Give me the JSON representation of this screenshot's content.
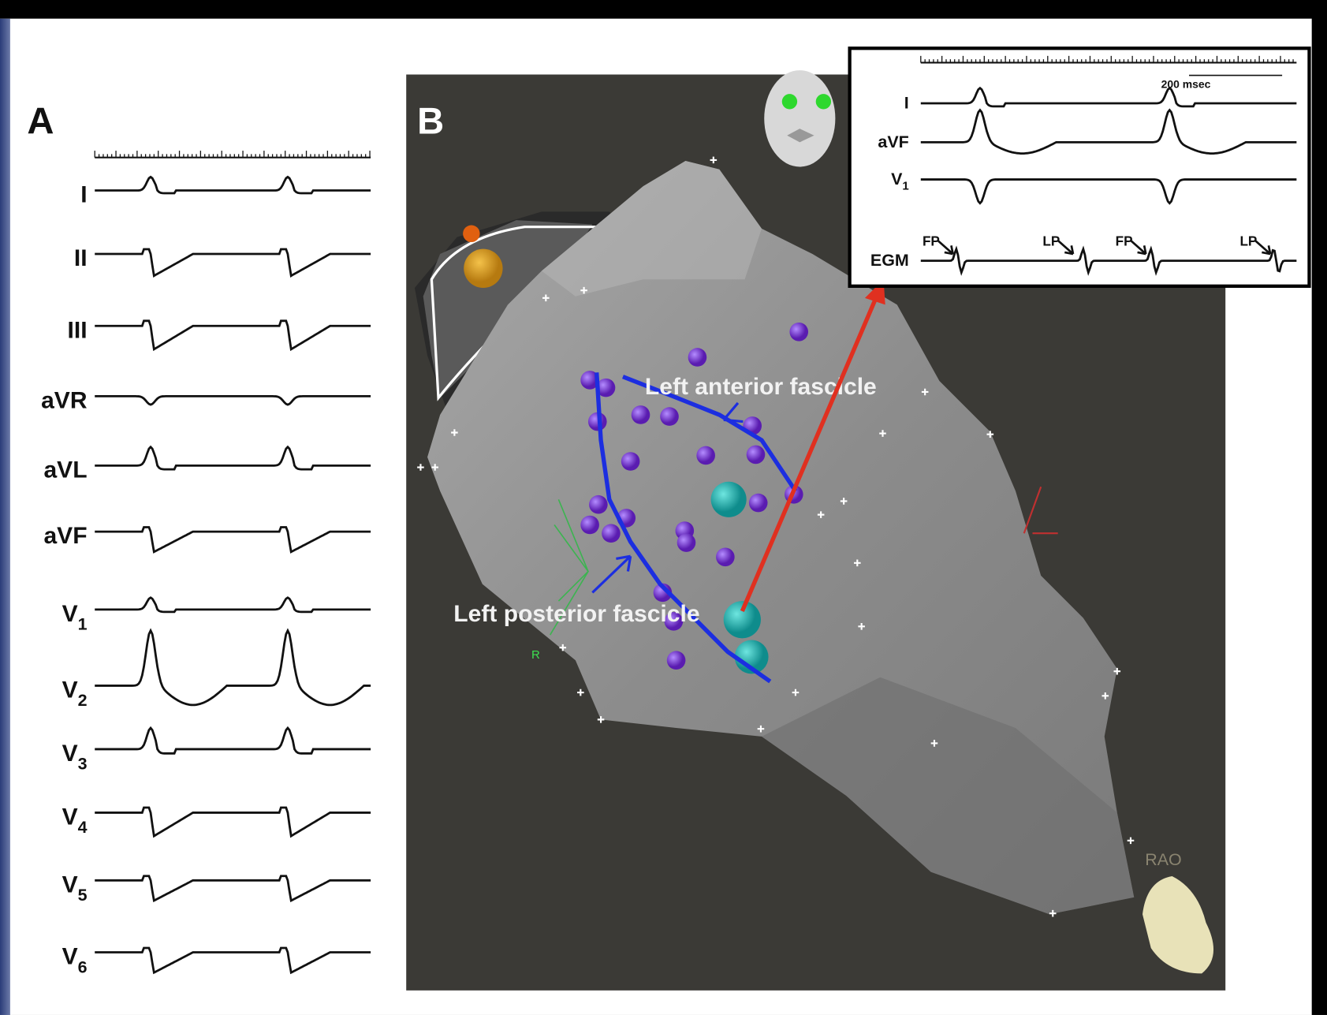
{
  "panel_a": {
    "label": "A",
    "leads": [
      {
        "name": "I"
      },
      {
        "name": "II"
      },
      {
        "name": "III"
      },
      {
        "name": "aVR"
      },
      {
        "name": "aVL"
      },
      {
        "name": "aVF"
      },
      {
        "name": "V",
        "sub": "1"
      },
      {
        "name": "V",
        "sub": "2"
      },
      {
        "name": "V",
        "sub": "3"
      },
      {
        "name": "V",
        "sub": "4"
      },
      {
        "name": "V",
        "sub": "5"
      },
      {
        "name": "V",
        "sub": "6"
      }
    ]
  },
  "panel_b": {
    "label": "B",
    "annotations": {
      "anterior": "Left anterior fascicle",
      "posterior": "Left posterior fascicle",
      "r": "R",
      "view": "RAO"
    },
    "inset": {
      "scale": "200 msec",
      "leads": [
        {
          "name": "I"
        },
        {
          "name": "aVF"
        },
        {
          "name": "V",
          "sub": "1"
        },
        {
          "name": "EGM"
        }
      ],
      "markers": [
        "FP",
        "LP",
        "FP",
        "LP"
      ]
    }
  }
}
